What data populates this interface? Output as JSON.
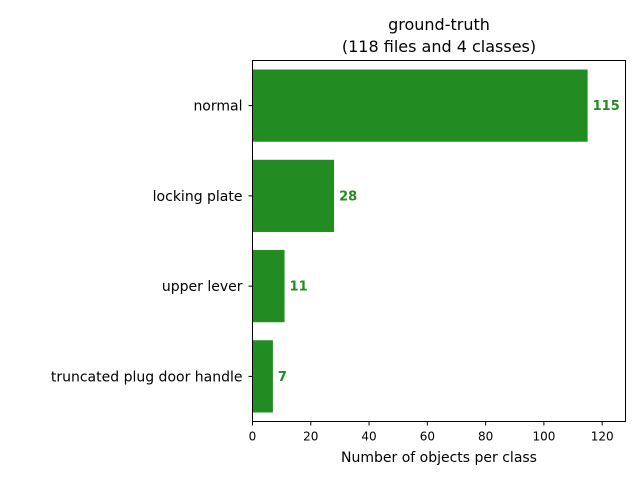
{
  "chart_data": {
    "type": "bar",
    "orientation": "horizontal",
    "title_line1": "ground-truth",
    "title_line2": "(118 files and 4 classes)",
    "xlabel": "Number of objects per class",
    "ylabel": "",
    "categories": [
      "normal",
      "locking plate",
      "upper lever",
      "truncated plug door handle"
    ],
    "values": [
      115,
      28,
      11,
      7
    ],
    "value_labels": [
      "115",
      "28",
      "11",
      "7"
    ],
    "xlim": [
      0,
      128
    ],
    "xticks": [
      0,
      20,
      40,
      60,
      80,
      100,
      120
    ],
    "xtick_labels": [
      "0",
      "20",
      "40",
      "60",
      "80",
      "100",
      "120"
    ],
    "grid": false,
    "legend": "none",
    "bar_color": "#228B22"
  }
}
